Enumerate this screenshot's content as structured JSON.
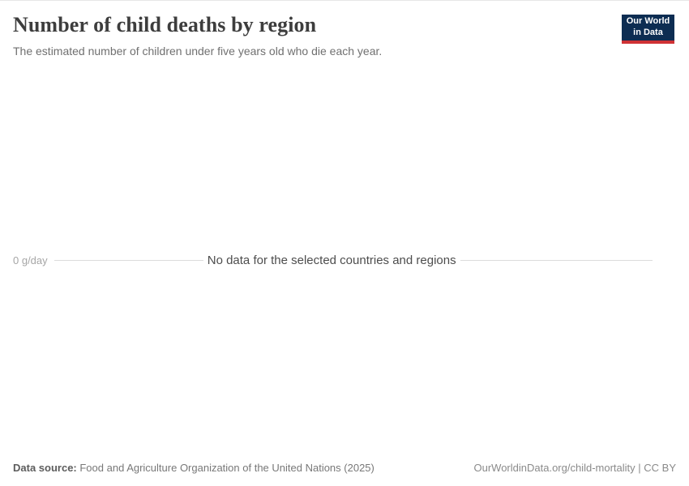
{
  "header": {
    "title": "Number of child deaths by region",
    "subtitle": "The estimated number of children under five years old who die each year.",
    "logo": {
      "line1": "Our World",
      "line2": "in Data",
      "bg_color": "#0d2d52",
      "accent_color": "#cf3235"
    }
  },
  "chart": {
    "y_axis_tick_label": "0 g/day",
    "no_data_message": "No data for the selected countries and regions",
    "grid_line_color": "#dcdcdc"
  },
  "chart_data": {
    "type": "line",
    "title": "Number of child deaths by region",
    "subtitle": "The estimated number of children under five years old who die each year.",
    "series": [],
    "y_ticks": [
      "0 g/day"
    ],
    "x_ticks": [],
    "no_data": true,
    "no_data_message": "No data for the selected countries and regions",
    "grid": "single-zero-line",
    "legend_position": "none"
  },
  "footer": {
    "source_label": "Data source:",
    "source_value": " Food and Agriculture Organization of the United Nations (2025)",
    "link": "OurWorldinData.org/child-mortality | CC BY"
  }
}
